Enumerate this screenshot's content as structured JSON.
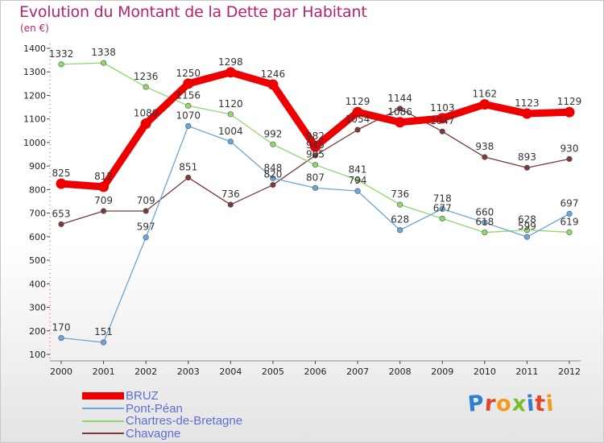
{
  "header": {
    "title": "Evolution du Montant de la Dette par Habitant",
    "unit": "(en €)"
  },
  "logo": {
    "text": "Proxiti",
    "letter_colors": [
      "#2e7fcf",
      "#e0462c",
      "#f09a1e",
      "#7cbd2a",
      "#2e7fcf",
      "#e0462c",
      "#f09a1e"
    ]
  },
  "chart_data": {
    "type": "line",
    "title": "Evolution du Montant de la Dette par Habitant",
    "ylabel": "(en €)",
    "xlabel": "",
    "x": [
      "2000",
      "2001",
      "2002",
      "2003",
      "2004",
      "2005",
      "2006",
      "2007",
      "2008",
      "2009",
      "2010",
      "2011",
      "2012"
    ],
    "ylim": [
      100,
      1400
    ],
    "yticks": [
      100,
      200,
      300,
      400,
      500,
      600,
      700,
      800,
      900,
      1000,
      1100,
      1200,
      1300,
      1400
    ],
    "grid": false,
    "legend": "bottom-left",
    "series": [
      {
        "name": "BRUZ",
        "color": "#ee0000",
        "values": [
          825,
          812,
          1080,
          1250,
          1298,
          1246,
          982,
          1129,
          1086,
          1103,
          1162,
          1123,
          1129
        ]
      },
      {
        "name": "Pont-Péan",
        "color": "#6aa6d6",
        "values": [
          170,
          151,
          597,
          1070,
          1004,
          848,
          807,
          794,
          628,
          718,
          660,
          599,
          697
        ]
      },
      {
        "name": "Chartres-de-Bretagne",
        "color": "#92d66e",
        "values": [
          1332,
          1338,
          1236,
          1156,
          1120,
          992,
          905,
          841,
          736,
          677,
          618,
          628,
          619
        ]
      },
      {
        "name": "Chavagne",
        "color": "#7a3a3a",
        "values": [
          653,
          709,
          709,
          851,
          736,
          820,
          945,
          1054,
          1144,
          1047,
          938,
          893,
          930
        ]
      }
    ]
  }
}
